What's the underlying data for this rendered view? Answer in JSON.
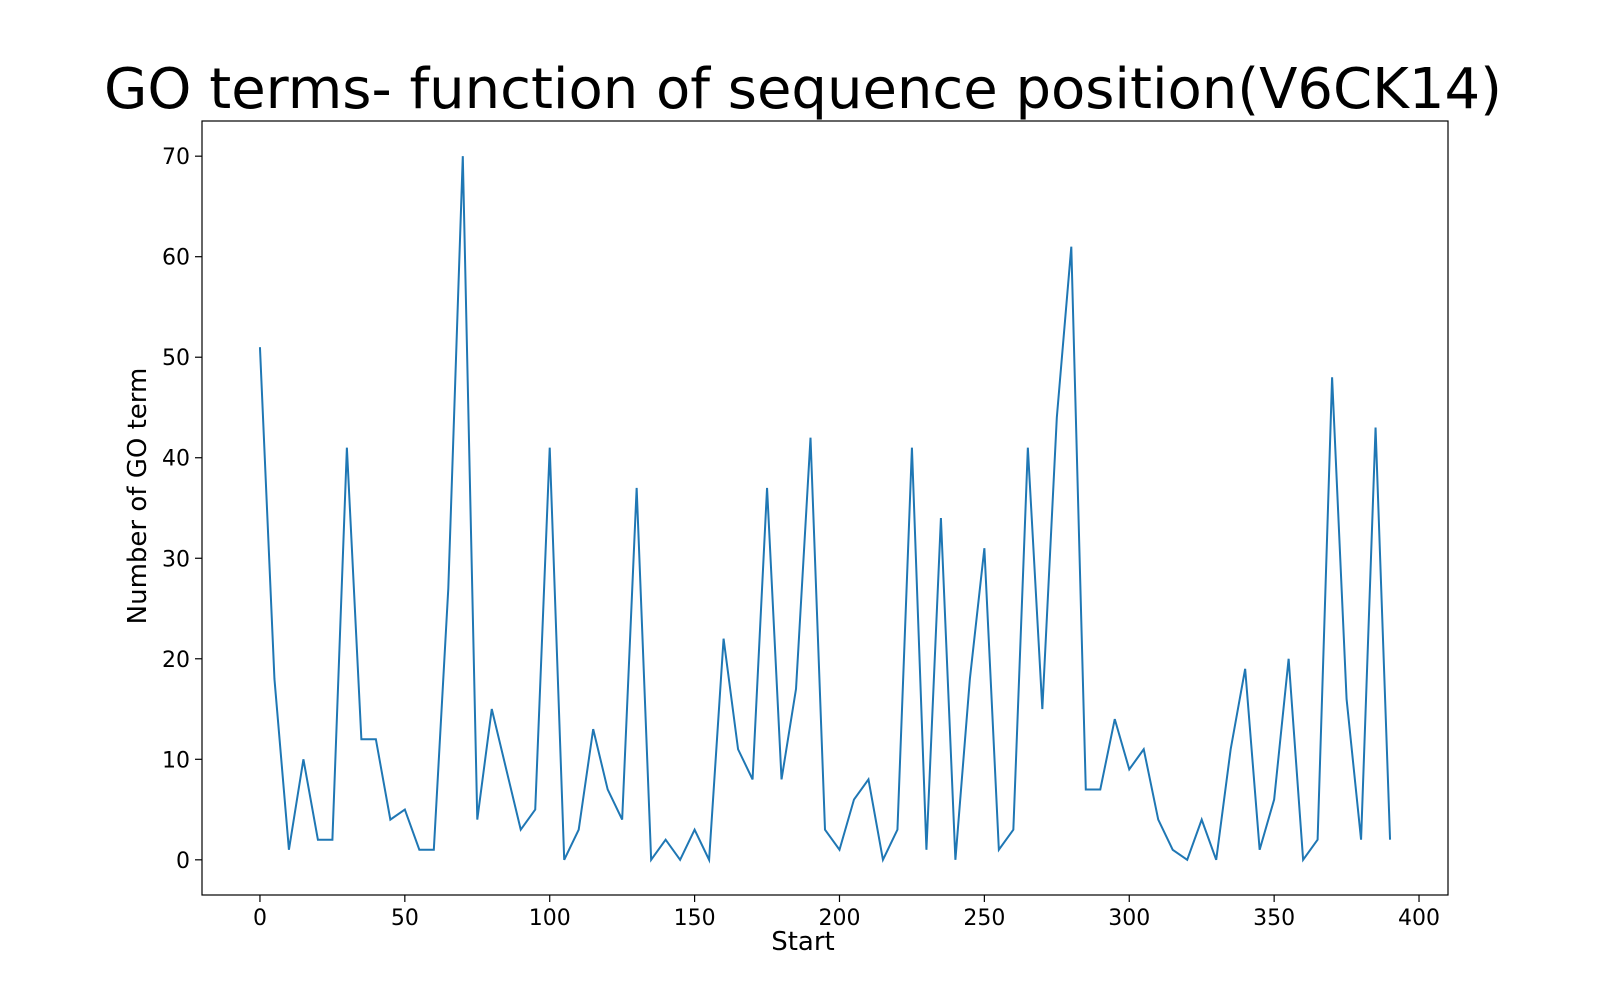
{
  "chart_data": {
    "type": "line",
    "title": "GO terms- function of sequence position(V6CK14)",
    "xlabel": "Start",
    "ylabel": "Number of GO term",
    "xlim": [
      -20,
      410
    ],
    "ylim": [
      -3.5,
      73.5
    ],
    "xticks": [
      0,
      50,
      100,
      150,
      200,
      250,
      300,
      350,
      400
    ],
    "yticks": [
      0,
      10,
      20,
      30,
      40,
      50,
      60,
      70
    ],
    "grid": false,
    "color": "#1f77b4",
    "x": [
      0,
      5,
      10,
      15,
      20,
      25,
      30,
      35,
      40,
      45,
      50,
      55,
      60,
      65,
      70,
      75,
      80,
      85,
      90,
      95,
      100,
      105,
      110,
      115,
      120,
      125,
      130,
      135,
      140,
      145,
      150,
      155,
      160,
      165,
      170,
      175,
      180,
      185,
      190,
      195,
      200,
      205,
      210,
      215,
      220,
      225,
      230,
      235,
      240,
      245,
      250,
      255,
      260,
      265,
      270,
      275,
      280,
      285,
      290,
      295,
      300,
      305,
      310,
      315,
      320,
      325,
      330,
      335,
      340,
      345,
      350,
      355,
      360,
      365,
      370,
      375,
      380,
      385,
      390
    ],
    "y": [
      51,
      18,
      1,
      10,
      2,
      2,
      41,
      12,
      12,
      4,
      5,
      1,
      1,
      27,
      70,
      4,
      15,
      9,
      3,
      5,
      41,
      0,
      3,
      13,
      7,
      4,
      37,
      0,
      2,
      0,
      3,
      0,
      22,
      11,
      8,
      37,
      8,
      17,
      42,
      3,
      1,
      6,
      8,
      0,
      3,
      41,
      1,
      34,
      0,
      18,
      31,
      1,
      3,
      41,
      15,
      44,
      61,
      7,
      7,
      14,
      9,
      11,
      4,
      1,
      0,
      4,
      0,
      11,
      19,
      1,
      6,
      20,
      0,
      2,
      48,
      16,
      2,
      43,
      2
    ]
  }
}
